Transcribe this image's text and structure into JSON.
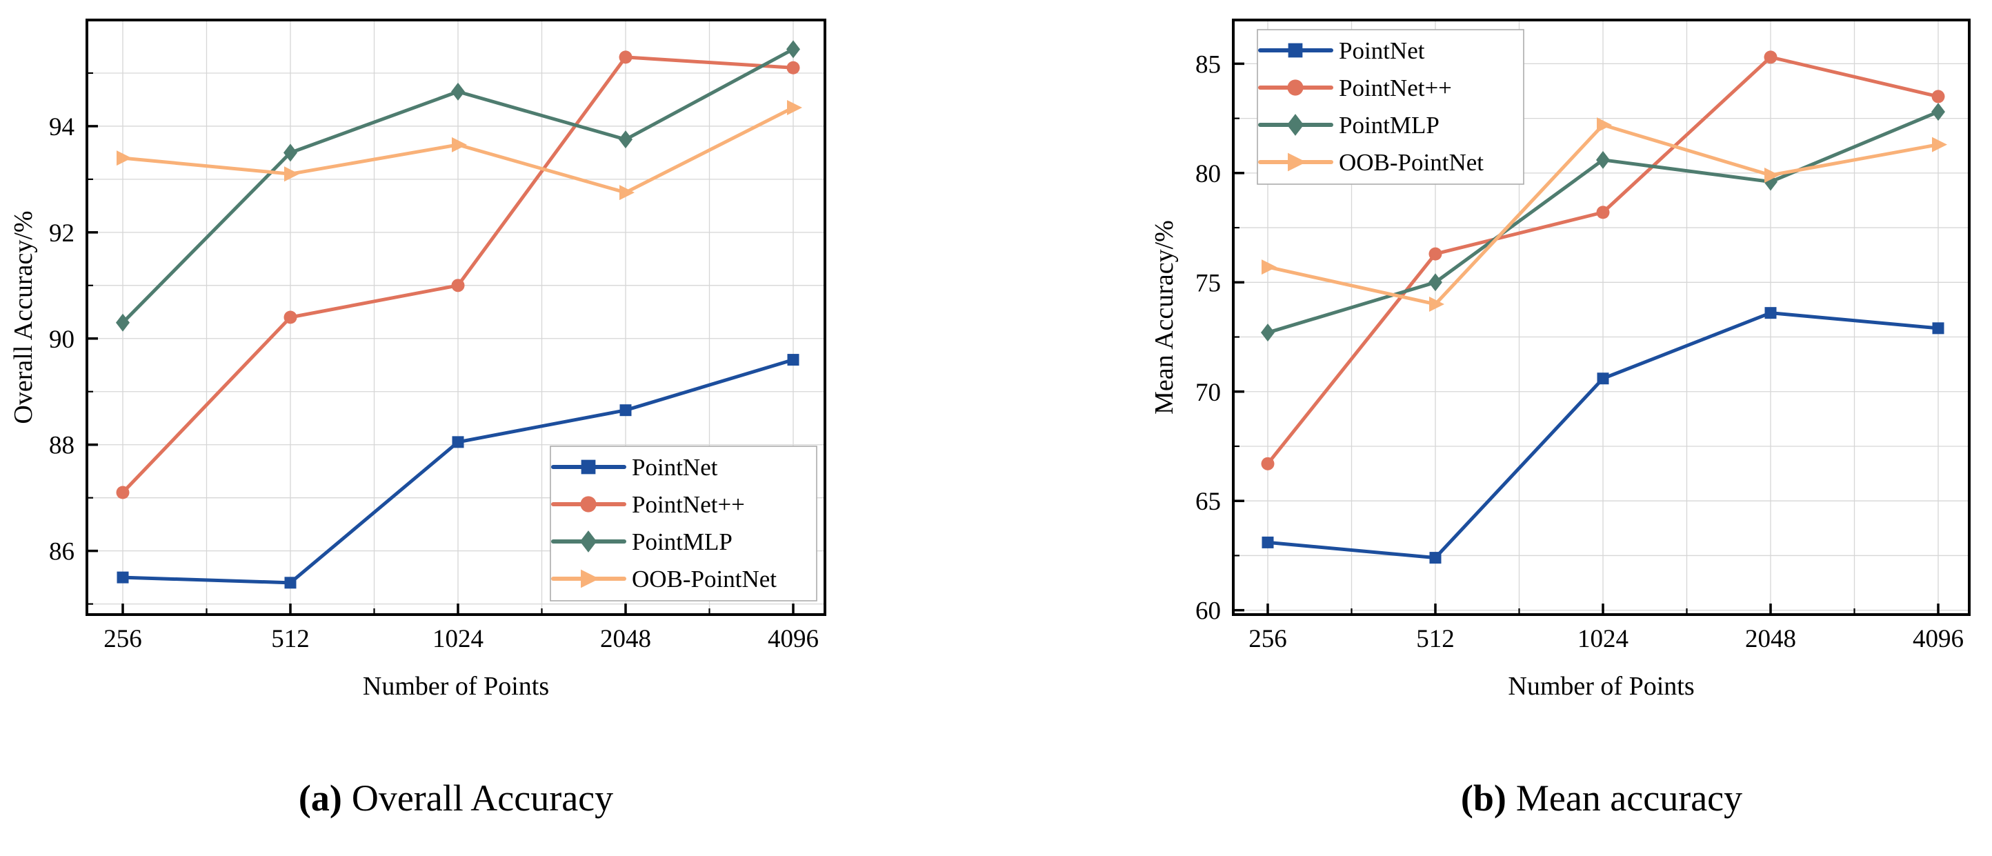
{
  "chart_data": [
    {
      "type": "line",
      "title": "(a) Overall Accuracy",
      "xlabel": "Number of Points",
      "ylabel": "Overall Accuracy/%",
      "categories": [
        256,
        512,
        1024,
        2048,
        4096
      ],
      "xticklabels": [
        "256",
        "512",
        "1024",
        "2048",
        "4096"
      ],
      "ylim": [
        84.8,
        96.0
      ],
      "yticks": [
        86,
        88,
        90,
        92,
        94
      ],
      "minor_grid_step": 1,
      "grid": true,
      "legend_position": "bottom-right",
      "series": [
        {
          "name": "PointNet",
          "color": "#1C4E9D",
          "marker": "square",
          "values": [
            85.5,
            85.4,
            88.05,
            88.65,
            89.6
          ]
        },
        {
          "name": "PointNet++",
          "color": "#E0735C",
          "marker": "circle",
          "values": [
            87.1,
            90.4,
            91.0,
            95.3,
            95.1
          ]
        },
        {
          "name": "PointMLP",
          "color": "#4E7C6F",
          "marker": "diamond",
          "values": [
            90.3,
            93.5,
            94.65,
            93.75,
            95.45
          ]
        },
        {
          "name": "OOB-PointNet",
          "color": "#F9B178",
          "marker": "triangle-right",
          "values": [
            93.4,
            93.1,
            93.65,
            92.75,
            94.35
          ]
        }
      ],
      "caption": {
        "tag": "(a)",
        "text": "Overall Accuracy"
      }
    },
    {
      "type": "line",
      "title": "(b) Mean accuracy",
      "xlabel": "Number of Points",
      "ylabel": "Mean Accuracy/%",
      "categories": [
        256,
        512,
        1024,
        2048,
        4096
      ],
      "xticklabels": [
        "256",
        "512",
        "1024",
        "2048",
        "4096"
      ],
      "ylim": [
        59.8,
        87.0
      ],
      "yticks": [
        60,
        65,
        70,
        75,
        80,
        85
      ],
      "minor_grid_step": 2.5,
      "grid": true,
      "legend_position": "top-left",
      "series": [
        {
          "name": "PointNet",
          "color": "#1C4E9D",
          "marker": "square",
          "values": [
            63.1,
            62.4,
            70.6,
            73.6,
            72.9
          ]
        },
        {
          "name": "PointNet++",
          "color": "#E0735C",
          "marker": "circle",
          "values": [
            66.7,
            76.3,
            78.2,
            85.3,
            83.5
          ]
        },
        {
          "name": "PointMLP",
          "color": "#4E7C6F",
          "marker": "diamond",
          "values": [
            72.7,
            75.0,
            80.6,
            79.6,
            82.8
          ]
        },
        {
          "name": "OOB-PointNet",
          "color": "#F9B178",
          "marker": "triangle-right",
          "values": [
            75.7,
            74.0,
            82.2,
            79.9,
            81.3
          ]
        }
      ],
      "caption": {
        "tag": "(b)",
        "text": "Mean accuracy"
      }
    }
  ],
  "style": {
    "grid_color": "#D6D6D6",
    "frame_color": "#000000",
    "legend_border_color": "#ABABAB",
    "background": "#FFFFFF"
  }
}
